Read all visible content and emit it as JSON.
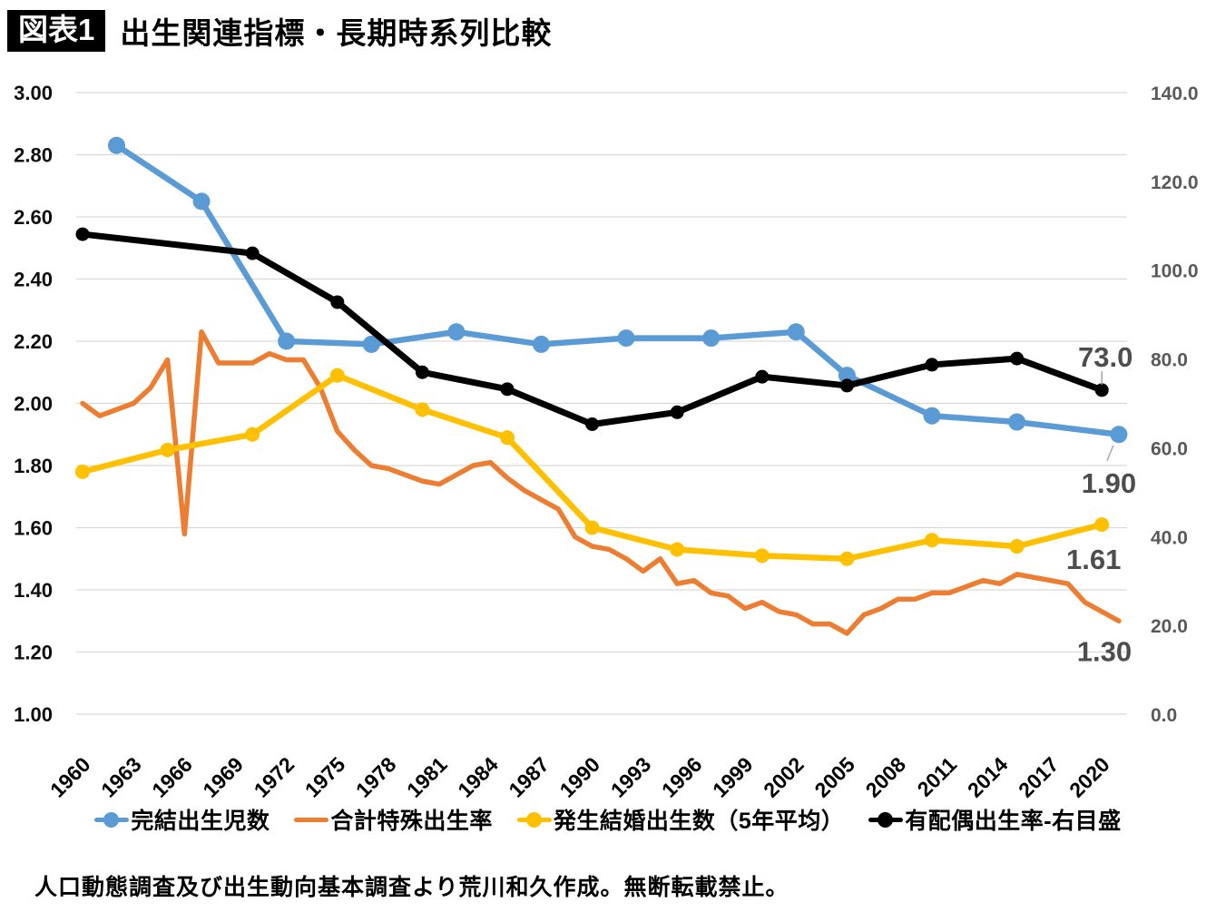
{
  "header": {
    "badge": "図表1",
    "title": "出生関連指標・長期時系列比較"
  },
  "footer": {
    "source_note": "人口動態調査及び出生動向基本調査より荒川和久作成。無断転載禁止。"
  },
  "chart_data": {
    "type": "line",
    "title": "出生関連指標・長期時系列比較",
    "grid": "horizontal-only",
    "legend_position": "bottom",
    "style": {
      "gridline_color": "#d9d9d9",
      "left_axis_color": "#0d0d0d",
      "right_axis_color": "#595959",
      "x_axis_color": "#000000",
      "data_label_color": "#4d4d4d",
      "leader_line_color": "#a6a6a6"
    },
    "left_axis": {
      "min": 1.0,
      "max": 3.0,
      "ticks": [
        3.0,
        2.8,
        2.6,
        2.4,
        2.2,
        2.0,
        1.8,
        1.6,
        1.4,
        1.2,
        1.0
      ]
    },
    "right_axis": {
      "min": 0.0,
      "max": 140.0,
      "ticks": [
        140.0,
        120.0,
        100.0,
        80.0,
        60.0,
        40.0,
        20.0,
        0.0
      ]
    },
    "x_axis": {
      "ticks": [
        1960,
        1963,
        1966,
        1969,
        1972,
        1975,
        1978,
        1981,
        1984,
        1987,
        1990,
        1993,
        1996,
        1999,
        2002,
        2005,
        2008,
        2011,
        2014,
        2017,
        2020
      ]
    },
    "series": [
      {
        "key": "completed-births",
        "name": "完結出生児数",
        "color": "#5b9bd5",
        "axis": "left",
        "end_label": "1.90",
        "x": [
          1962,
          1967,
          1972,
          1977,
          1982,
          1987,
          1992,
          1997,
          2002,
          2005,
          2010,
          2015,
          2021
        ],
        "values": [
          2.83,
          2.65,
          2.2,
          2.19,
          2.23,
          2.19,
          2.21,
          2.21,
          2.23,
          2.09,
          1.96,
          1.94,
          1.9
        ]
      },
      {
        "key": "tfr",
        "name": "合計特殊出生率",
        "color": "#ed7d31",
        "axis": "left",
        "end_label": "1.30",
        "x": [
          1960,
          1961,
          1962,
          1963,
          1964,
          1965,
          1966,
          1967,
          1968,
          1969,
          1970,
          1971,
          1972,
          1973,
          1974,
          1975,
          1976,
          1977,
          1978,
          1979,
          1980,
          1981,
          1982,
          1983,
          1984,
          1985,
          1986,
          1987,
          1988,
          1989,
          1990,
          1991,
          1992,
          1993,
          1994,
          1995,
          1996,
          1997,
          1998,
          1999,
          2000,
          2001,
          2002,
          2003,
          2004,
          2005,
          2006,
          2007,
          2008,
          2009,
          2010,
          2011,
          2012,
          2013,
          2014,
          2015,
          2016,
          2017,
          2018,
          2019,
          2020,
          2021
        ],
        "values": [
          2.0,
          1.96,
          1.98,
          2.0,
          2.05,
          2.14,
          1.58,
          2.23,
          2.13,
          2.13,
          2.13,
          2.16,
          2.14,
          2.14,
          2.05,
          1.91,
          1.85,
          1.8,
          1.79,
          1.77,
          1.75,
          1.74,
          1.77,
          1.8,
          1.81,
          1.76,
          1.72,
          1.69,
          1.66,
          1.57,
          1.54,
          1.53,
          1.5,
          1.46,
          1.5,
          1.42,
          1.43,
          1.39,
          1.38,
          1.34,
          1.36,
          1.33,
          1.32,
          1.29,
          1.29,
          1.26,
          1.32,
          1.34,
          1.37,
          1.37,
          1.39,
          1.39,
          1.41,
          1.43,
          1.42,
          1.45,
          1.44,
          1.43,
          1.42,
          1.36,
          1.33,
          1.3
        ]
      },
      {
        "key": "marriage-cohort-births",
        "name": "発生結婚出生数（5年平均）",
        "color": "#ffc000",
        "axis": "left",
        "end_label": "1.61",
        "x": [
          1960,
          1965,
          1970,
          1975,
          1980,
          1985,
          1990,
          1995,
          2000,
          2005,
          2010,
          2015,
          2020
        ],
        "values": [
          1.78,
          1.85,
          1.9,
          2.09,
          1.98,
          1.89,
          1.6,
          1.53,
          1.51,
          1.5,
          1.56,
          1.54,
          1.61
        ]
      },
      {
        "key": "marital-birth-rate",
        "name": "有配偶出生率-右目盛",
        "color": "#000000",
        "axis": "right",
        "end_label": "73.0",
        "x": [
          1960,
          1970,
          1975,
          1980,
          1985,
          1990,
          1995,
          2000,
          2005,
          2010,
          2015,
          2020
        ],
        "values": [
          108.1,
          103.8,
          92.8,
          77.0,
          73.2,
          65.3,
          68.0,
          76.0,
          74.0,
          78.7,
          80.1,
          73.0
        ]
      }
    ]
  },
  "legend": {
    "items": [
      {
        "label": "完結出生児数"
      },
      {
        "label": "合計特殊出生率"
      },
      {
        "label": "発生結婚出生数（5年平均）"
      },
      {
        "label": "有配偶出生率-右目盛"
      }
    ]
  }
}
